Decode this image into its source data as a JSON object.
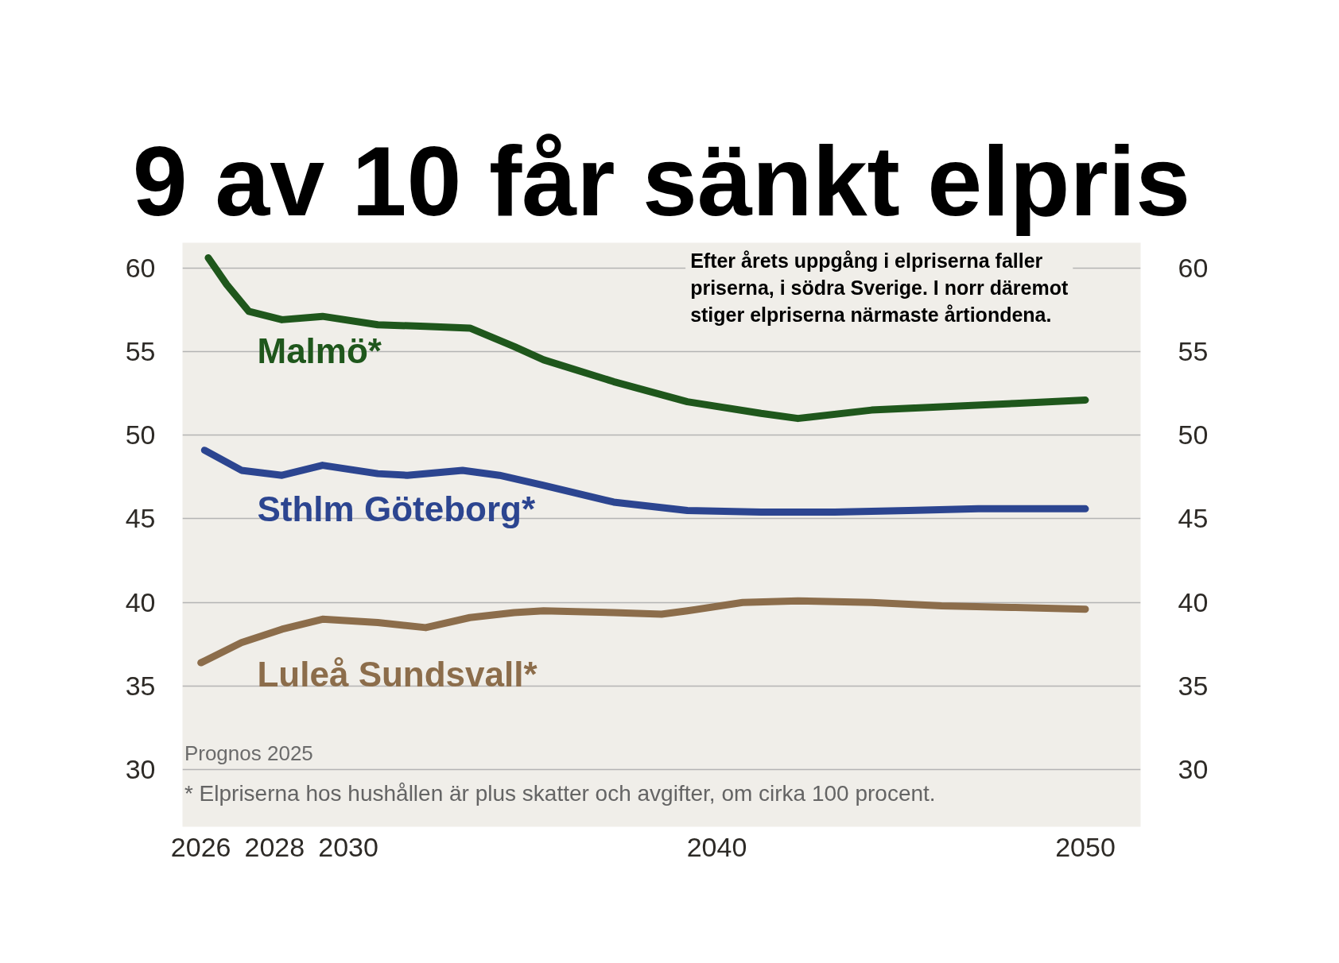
{
  "chart_data": {
    "type": "line",
    "title": "9 av 10 får sänkt elpris",
    "annotations": [
      "Efter årets uppgång i elpriserna faller priserna, i södra Sverige. I norr däremot stiger elpriserna närmaste årtiondena.",
      "Prognos 2025",
      "* Elpriserna hos hushållen är plus skatter och avgifter, om cirka 100 procent."
    ],
    "xlim": [
      2025.5,
      2051.5
    ],
    "xticks": [
      2026,
      2028,
      2030,
      2040,
      2050
    ],
    "ylim": [
      26.6,
      61.5
    ],
    "yticks": [
      30,
      35,
      40,
      45,
      50,
      55,
      60
    ],
    "y2lim": [
      26.6,
      61.5
    ],
    "y2ticks": [
      30,
      35,
      40,
      45,
      50,
      55,
      60
    ],
    "grid": "y",
    "series": [
      {
        "name": "Malmö*",
        "color": "#1f571c",
        "x": [
          2026.2,
          2026.7,
          2027.3,
          2028.2,
          2029.3,
          2030.8,
          2032.1,
          2033.3,
          2034.5,
          2035.3,
          2037.2,
          2039.2,
          2041.2,
          2042.2,
          2044.2,
          2046.1,
          2048.1,
          2050
        ],
        "values": [
          60.6,
          59.0,
          57.4,
          56.9,
          57.1,
          56.6,
          56.5,
          56.4,
          55.3,
          54.5,
          53.2,
          52.0,
          51.3,
          51.0,
          51.5,
          51.7,
          51.9,
          52.1
        ]
      },
      {
        "name": "Sthlm Göteborg*",
        "color": "#2c4590",
        "x": [
          2026.1,
          2027.1,
          2028.2,
          2029.3,
          2030.8,
          2031.6,
          2033.1,
          2034.1,
          2035.3,
          2037.2,
          2039.2,
          2041.2,
          2043.2,
          2045.2,
          2047.1,
          2050
        ],
        "values": [
          49.1,
          47.9,
          47.6,
          48.2,
          47.7,
          47.6,
          47.9,
          47.6,
          47.0,
          46.0,
          45.5,
          45.4,
          45.4,
          45.5,
          45.6,
          45.6
        ]
      },
      {
        "name": "Luleå Sundsvall*",
        "color": "#8c6d4b",
        "x": [
          2026.0,
          2027.1,
          2028.2,
          2029.3,
          2030.8,
          2032.1,
          2033.3,
          2034.5,
          2035.3,
          2037.2,
          2038.5,
          2039.2,
          2040.7,
          2042.2,
          2044.2,
          2046.1,
          2048.1,
          2050
        ],
        "values": [
          36.4,
          37.6,
          38.4,
          39.0,
          38.8,
          38.5,
          39.1,
          39.4,
          39.5,
          39.4,
          39.3,
          39.5,
          40.0,
          40.1,
          40.0,
          39.8,
          39.7,
          39.6
        ]
      }
    ]
  }
}
